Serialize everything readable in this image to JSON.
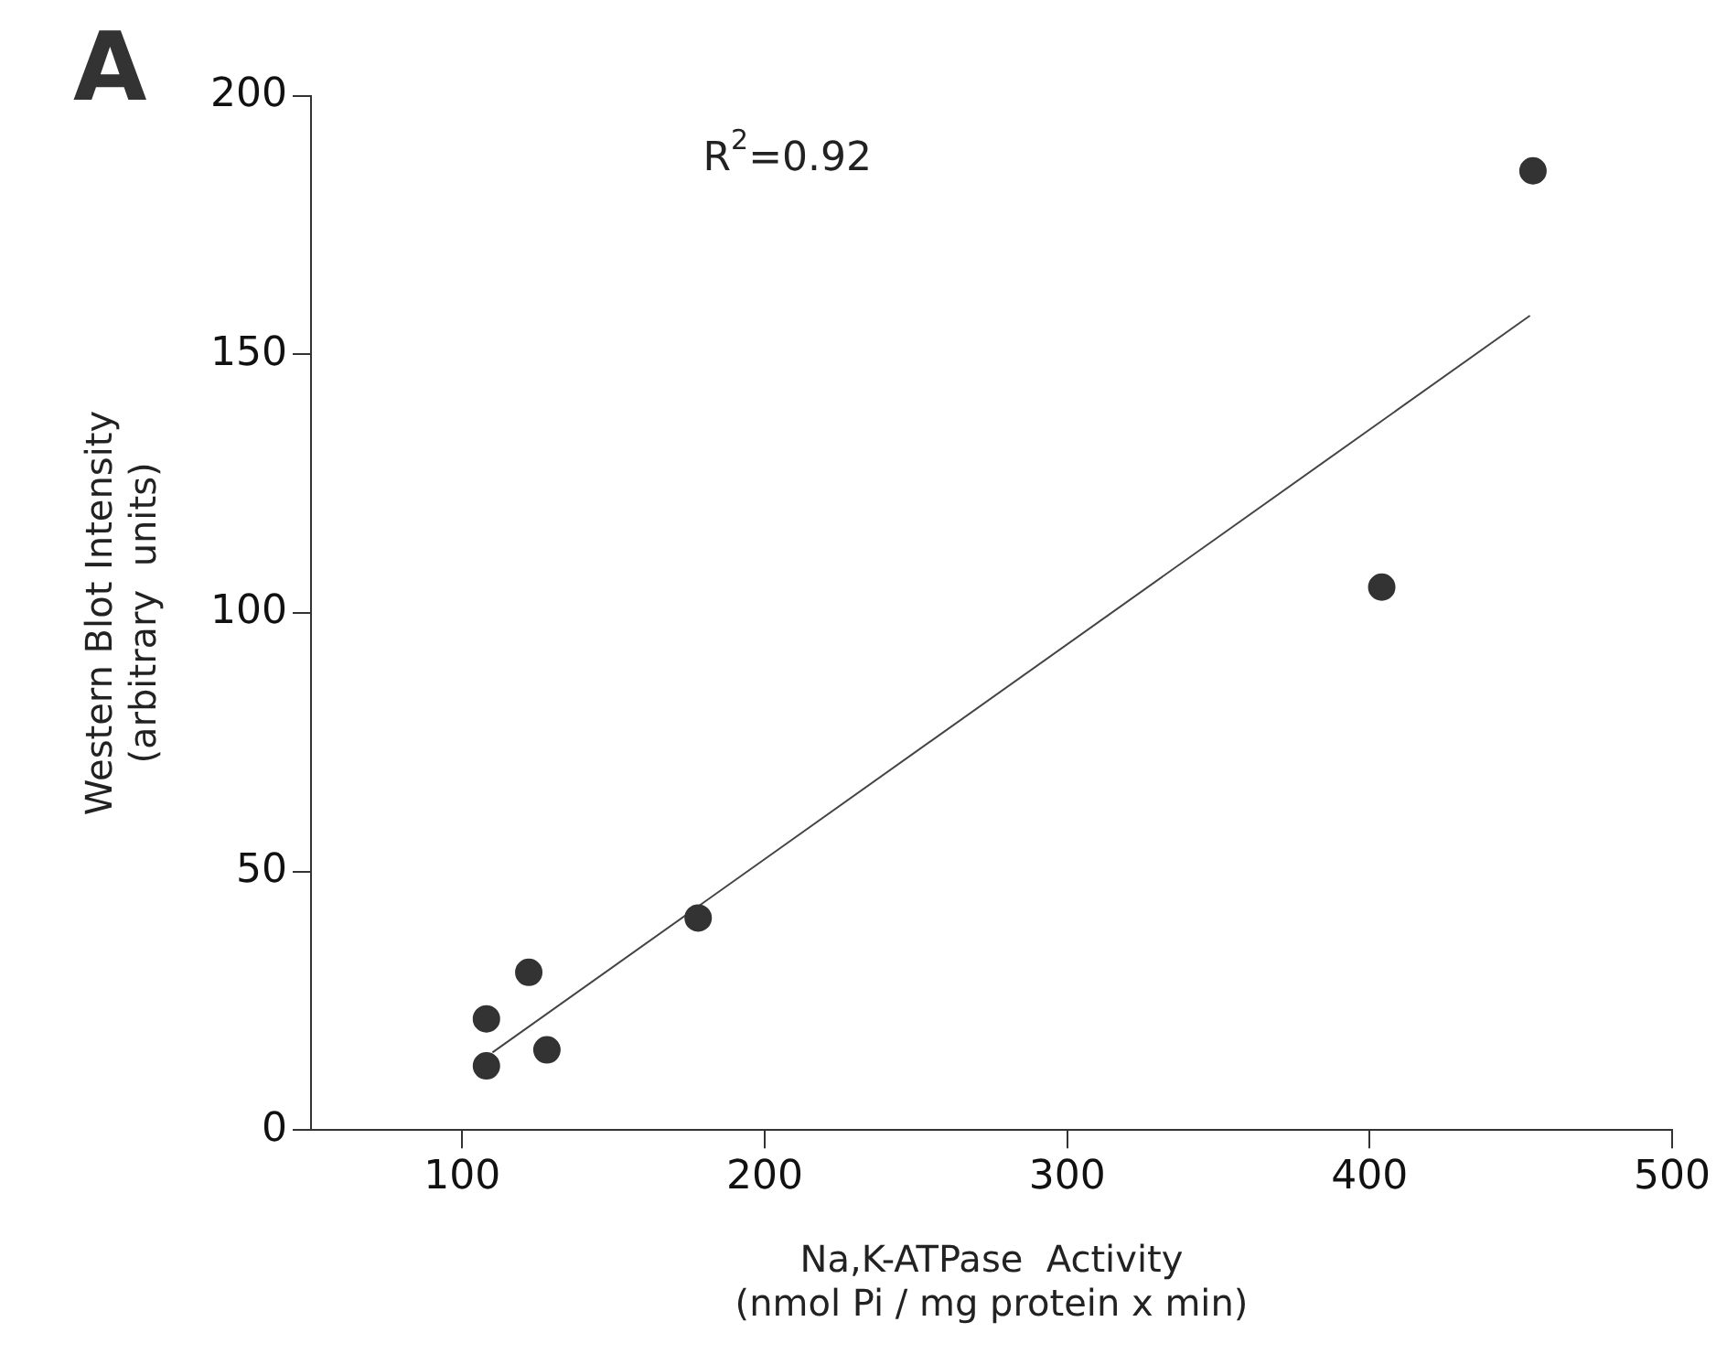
{
  "chart_data": {
    "type": "scatter",
    "title": "A",
    "xlabel": "Na,K-ATPase  Activity\n(nmol Pi / mg protein x min)",
    "ylabel": "Western Blot Intensity\n(arbitrary  units)",
    "annotations": [
      "R$^{2}$=0.92"
    ],
    "xlim": [
      50,
      500
    ],
    "xticks": [
      100,
      200,
      300,
      400,
      500
    ],
    "ylim": [
      0,
      200
    ],
    "yticks": [
      0,
      50,
      100,
      150,
      200
    ],
    "grid": false,
    "legend": false,
    "marker": "circle",
    "series": [
      {
        "type": "scatter",
        "color": "#333333",
        "x": [
          108,
          108,
          122,
          128,
          178,
          404,
          454
        ],
        "values": [
          12.4,
          21.5,
          30.5,
          15.5,
          41,
          105,
          185.5
        ]
      },
      {
        "type": "line",
        "color": "#444444",
        "x": [
          110,
          453
        ],
        "values": [
          15,
          157.5
        ],
        "marker": "none",
        "line_style": "solid"
      }
    ]
  }
}
